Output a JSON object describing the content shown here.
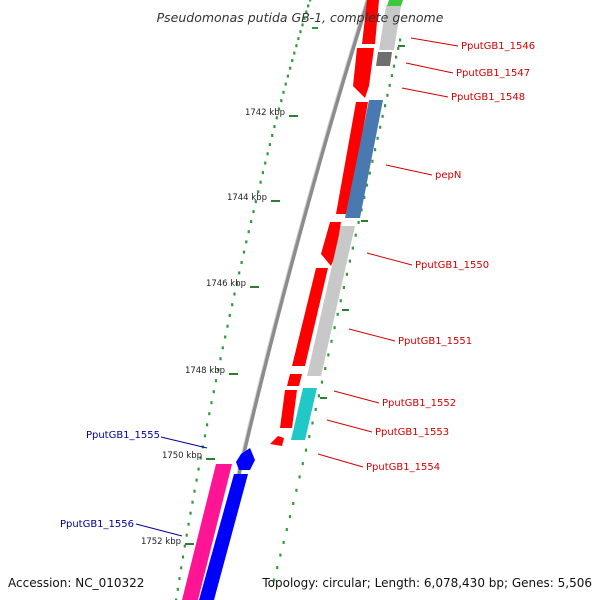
{
  "header": {
    "title": "Pseudomonas putida GB-1, complete genome"
  },
  "footer": {
    "accession": "Accession: NC_010322",
    "topology": "Topology: circular; Length: 6,078,430 bp; Genes: 5,506"
  },
  "colors": {
    "backbone": "#8c8c8c",
    "tick_major": "#2e7d32",
    "tick_minor": "#2e9a3a",
    "label_right": "#d40000",
    "label_left": "#00009c",
    "gene_red": "#ff0000",
    "gene_grey": "#c8c8c8",
    "gene_dark_grey": "#6e6e6e",
    "gene_steel": "#4a78b0",
    "gene_cyan": "#20c8c8",
    "gene_blue": "#0000ff",
    "gene_magenta": "#ff1493",
    "gene_green": "#3cc83c"
  },
  "scale_ticks": [
    {
      "label": "1742 kbp"
    },
    {
      "label": "1744 kbp"
    },
    {
      "label": "1746 kbp"
    },
    {
      "label": "1748 kbp"
    },
    {
      "label": "1750 kbp"
    },
    {
      "label": "1752 kbp"
    }
  ],
  "gene_labels": [
    {
      "name": "PputGB1_1546",
      "strand": "right"
    },
    {
      "name": "PputGB1_1547",
      "strand": "right"
    },
    {
      "name": "PputGB1_1548",
      "strand": "right"
    },
    {
      "name": "pepN",
      "strand": "right"
    },
    {
      "name": "PputGB1_1550",
      "strand": "right"
    },
    {
      "name": "PputGB1_1551",
      "strand": "right"
    },
    {
      "name": "PputGB1_1552",
      "strand": "right"
    },
    {
      "name": "PputGB1_1553",
      "strand": "right"
    },
    {
      "name": "PputGB1_1554",
      "strand": "right"
    },
    {
      "name": "PputGB1_1555",
      "strand": "left"
    },
    {
      "name": "PputGB1_1556",
      "strand": "left"
    }
  ]
}
